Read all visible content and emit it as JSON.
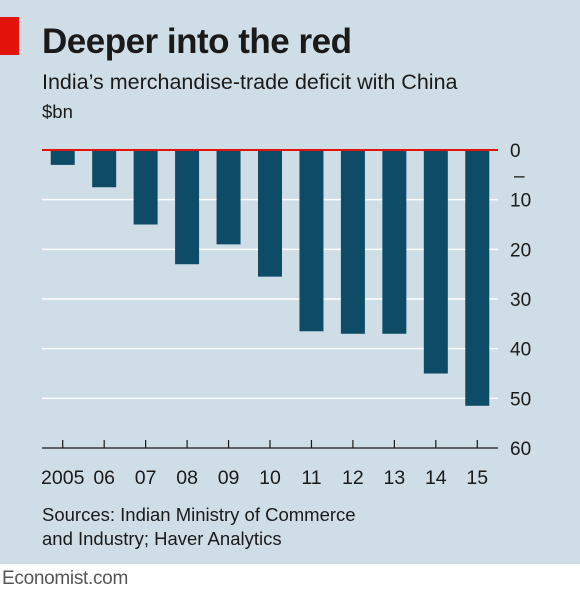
{
  "header": {
    "title": "Deeper into the red",
    "subtitle": "India’s merchandise-trade deficit with China",
    "unit": "$bn"
  },
  "source": {
    "line1": "Sources: Indian Ministry of Commerce",
    "line2": "and Industry; Haver Analytics"
  },
  "footer": {
    "brand": "Economist.com"
  },
  "colors": {
    "background": "#cfdde6",
    "bar": "#0e4b66",
    "zero_line": "#e3120b",
    "brand_tag": "#e3120b",
    "grid": "#ffffff"
  },
  "chart_data": {
    "type": "bar",
    "orientation": "vertical",
    "title": "Deeper into the red",
    "subtitle": "India’s merchandise-trade deficit with China",
    "ylabel": "$bn",
    "categories": [
      "2005",
      "06",
      "07",
      "08",
      "09",
      "10",
      "11",
      "12",
      "13",
      "14",
      "15"
    ],
    "values": [
      -3,
      -7.5,
      -15,
      -23,
      -19,
      -25.5,
      -36.5,
      -37,
      -37,
      -45,
      -51.5
    ],
    "ylim": [
      -60,
      0
    ],
    "y_ticks": [
      0,
      -10,
      -20,
      -30,
      -40,
      -50,
      -60
    ],
    "y_tick_labels": [
      "0",
      "10",
      "20",
      "30",
      "40",
      "50",
      "60"
    ],
    "y_minus_marker": "–",
    "y_axis_side": "right",
    "grid": true
  }
}
